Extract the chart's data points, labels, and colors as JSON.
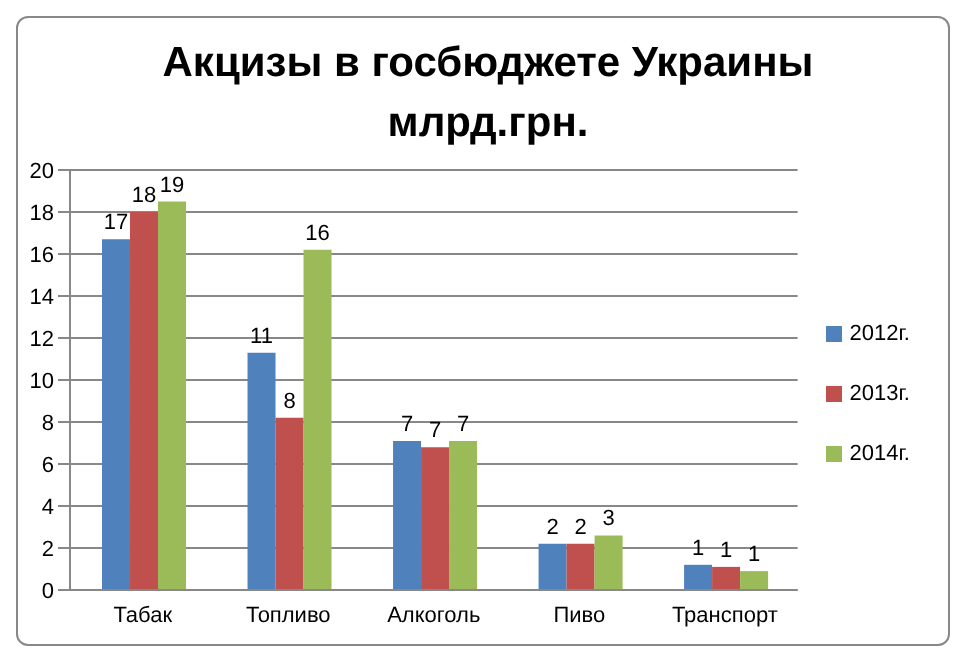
{
  "chart_data": {
    "type": "bar",
    "title": "Акцизы в госбюджете Украины млрд.грн.",
    "categories": [
      "Табак",
      "Топливо",
      "Алкоголь",
      "Пиво",
      "Транспорт"
    ],
    "series": [
      {
        "name": "2012г.",
        "color": "#4f81bd",
        "values": [
          16.7,
          11.3,
          7.1,
          2.2,
          1.2
        ],
        "value_labels": [
          "17",
          "11",
          "7",
          "2",
          "1"
        ]
      },
      {
        "name": "2013г.",
        "color": "#c0504d",
        "values": [
          18.0,
          8.2,
          6.8,
          2.2,
          1.1
        ],
        "value_labels": [
          "18",
          "8",
          "7",
          "2",
          "1"
        ]
      },
      {
        "name": "2014г.",
        "color": "#9bbb59",
        "values": [
          18.5,
          16.2,
          7.1,
          2.6,
          0.9
        ],
        "value_labels": [
          "19",
          "16",
          "7",
          "3",
          "1"
        ]
      }
    ],
    "ylim": [
      0,
      20
    ],
    "yticks": [
      0,
      2,
      4,
      6,
      8,
      10,
      12,
      14,
      16,
      18,
      20
    ],
    "grid": "y",
    "legend": "right"
  }
}
